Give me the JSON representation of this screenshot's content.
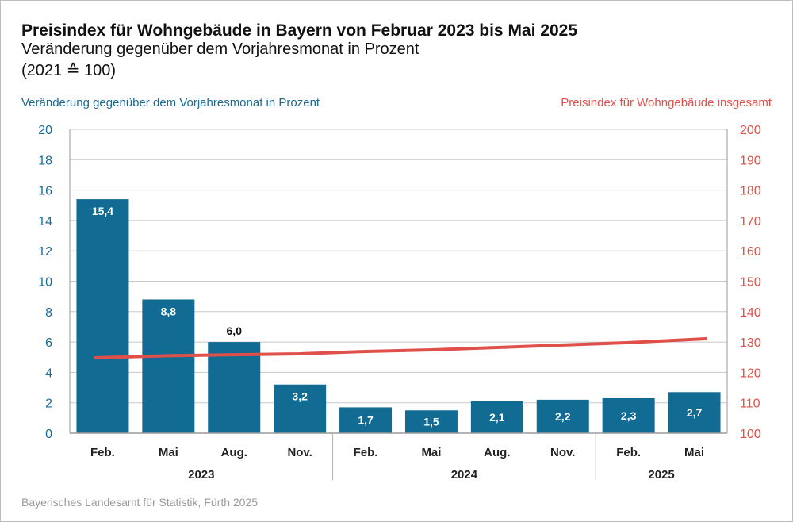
{
  "title": "Preisindex für Wohngebäude in Bayern von Februar 2023 bis Mai 2025",
  "subtitle": "Veränderung gegenüber dem Vorjahresmonat in Prozent",
  "subtitle2": "(2021 ≙ 100)",
  "source": "Bayerisches Landesamt für Statistik, Fürth 2025",
  "chart_data": {
    "type": "bar",
    "categories": [
      "Feb.",
      "Mai",
      "Aug.",
      "Nov.",
      "Feb.",
      "Mai",
      "Aug.",
      "Nov.",
      "Feb.",
      "Mai"
    ],
    "years": [
      {
        "label": "2023",
        "span": 4
      },
      {
        "label": "2024",
        "span": 4
      },
      {
        "label": "2025",
        "span": 2
      }
    ],
    "series": [
      {
        "name": "Veränderung gegenüber dem Vorjahresmonat in Prozent",
        "type": "bar",
        "axis": "left",
        "color": "#116b93",
        "values": [
          15.4,
          8.8,
          6.0,
          3.2,
          1.7,
          1.5,
          2.1,
          2.2,
          2.3,
          2.7
        ],
        "labels": [
          "15,4",
          "8,8",
          "6,0",
          "3,2",
          "1,7",
          "1,5",
          "2,1",
          "2,2",
          "2,3",
          "2,7"
        ]
      },
      {
        "name": "Preisindex für Wohngebäude insgesamt",
        "type": "line",
        "axis": "right",
        "color": "#e0504a",
        "values": [
          124.8,
          125.5,
          125.8,
          126.1,
          126.9,
          127.4,
          128.2,
          129.0,
          129.8,
          131.1
        ]
      }
    ],
    "left_axis": {
      "range": [
        0,
        20
      ],
      "ticks": [
        0,
        2,
        4,
        6,
        8,
        10,
        12,
        14,
        16,
        18,
        20
      ],
      "color": "#1a6a92"
    },
    "right_axis": {
      "range": [
        100,
        200
      ],
      "ticks": [
        100,
        110,
        120,
        130,
        140,
        150,
        160,
        170,
        180,
        190,
        200
      ],
      "color": "#e0504a"
    },
    "grid": true,
    "legend": "top"
  }
}
